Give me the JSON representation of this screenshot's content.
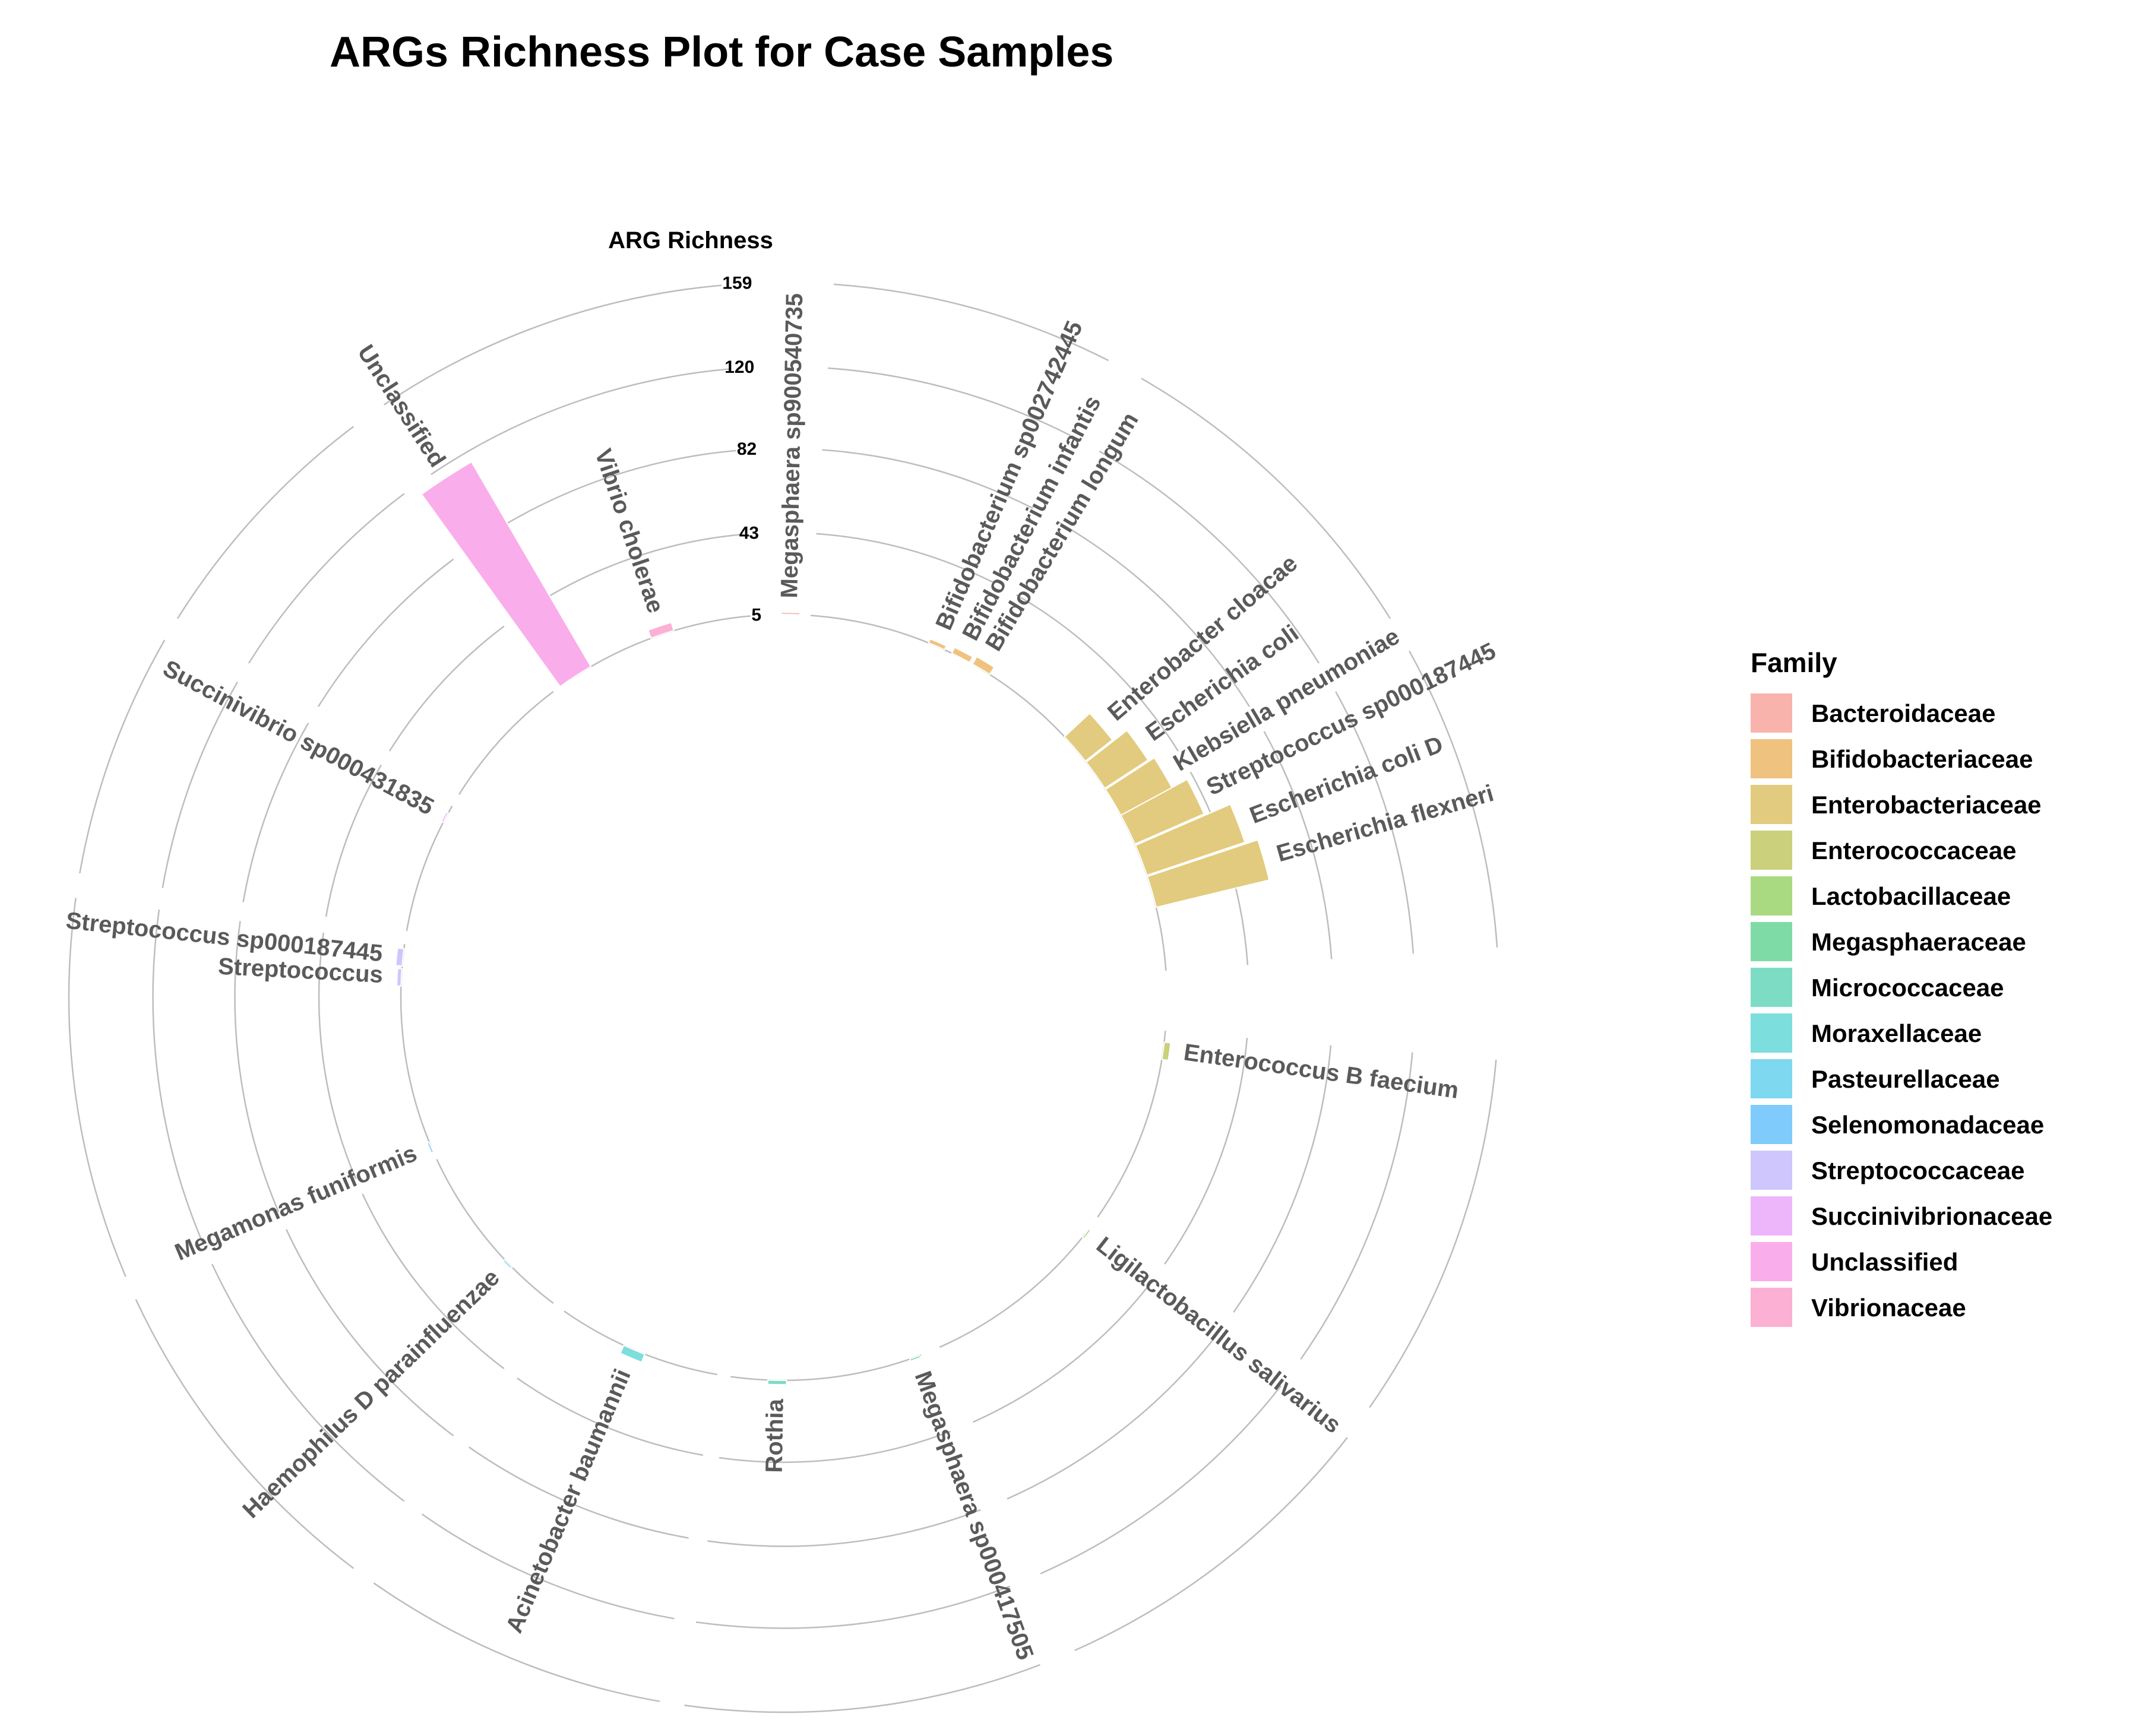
{
  "chart_data": {
    "type": "bar",
    "polar": true,
    "title": "ARGs Richness Plot for Case Samples",
    "ylabel": "ARG Richness",
    "yticks": [
      5,
      43,
      82,
      120,
      159
    ],
    "legend": {
      "title": "Family",
      "position": "right"
    },
    "grid": true,
    "families": [
      {
        "name": "Bacteroidaceae",
        "color": "#F8B3AC"
      },
      {
        "name": "Bifidobacteriaceae",
        "color": "#F0C27F"
      },
      {
        "name": "Enterobacteriaceae",
        "color": "#E2CB7E"
      },
      {
        "name": "Enterococcaceae",
        "color": "#CAD07C"
      },
      {
        "name": "Lactobacillaceae",
        "color": "#A9D981"
      },
      {
        "name": "Megasphaeraceae",
        "color": "#7FDBA5"
      },
      {
        "name": "Micrococcaceae",
        "color": "#7CDDC4"
      },
      {
        "name": "Moraxellaceae",
        "color": "#7CDEDD"
      },
      {
        "name": "Pasteurellaceae",
        "color": "#7DD8F0"
      },
      {
        "name": "Selenomonadaceae",
        "color": "#7FCBFB"
      },
      {
        "name": "Streptococcaceae",
        "color": "#CFC6FD"
      },
      {
        "name": "Succinivibrionaceae",
        "color": "#EDB6FB"
      },
      {
        "name": "Unclassified",
        "color": "#FAADEB"
      },
      {
        "name": "Vibrionaceae",
        "color": "#FCB0D3"
      }
    ],
    "bars": [
      {
        "label": "Megasphaera sp900540735",
        "family": "Bacteroidaceae",
        "value": 1
      },
      {
        "label": "Bifidobacterium sp002742445",
        "family": "Bifidobacteriaceae",
        "value": 2
      },
      {
        "label": "Bifidobacterium infantis",
        "family": "Bifidobacteriaceae",
        "value": 3
      },
      {
        "label": "Bifidobacterium longum",
        "family": "Bifidobacteriaceae",
        "value": 4
      },
      {
        "label": "Enterobacter cloacae",
        "family": "Enterobacteriaceae",
        "value": 16
      },
      {
        "label": "Escherichia coli",
        "family": "Enterobacteriaceae",
        "value": 24
      },
      {
        "label": "Klebsiella pneumoniae",
        "family": "Enterobacteriaceae",
        "value": 27
      },
      {
        "label": "Streptococcus sp000187445",
        "family": "Enterobacteriaceae",
        "value": 35
      },
      {
        "label": "Escherichia coli D",
        "family": "Enterobacteriaceae",
        "value": 48
      },
      {
        "label": "Escherichia flexneri",
        "family": "Enterobacteriaceae",
        "value": 54
      },
      {
        "label": "Enterococcus B faecium",
        "family": "Enterococcaceae",
        "value": 3
      },
      {
        "label": "Ligilactobacillus salivarius",
        "family": "Lactobacillaceae",
        "value": 1
      },
      {
        "label": "Megasphaera sp000417505",
        "family": "Megasphaeraceae",
        "value": 1
      },
      {
        "label": "Rothia",
        "family": "Micrococcaceae",
        "value": 2
      },
      {
        "label": "Acinetobacter baumannii",
        "family": "Moraxellaceae",
        "value": 4
      },
      {
        "label": "Haemophilus D parainfluenzae",
        "family": "Pasteurellaceae",
        "value": 1
      },
      {
        "label": "Megamonas funiformis",
        "family": "Selenomonadaceae",
        "value": 1
      },
      {
        "label": "Streptococcus",
        "family": "Streptococcaceae",
        "value": 2
      },
      {
        "label": "Streptococcus sp000187445",
        "family": "Streptococcaceae",
        "value": 3
      },
      {
        "label": "Succinivibrio sp000431835",
        "family": "Succinivibrionaceae",
        "value": 1
      },
      {
        "label": "Unclassified",
        "family": "Unclassified",
        "value": 110
      },
      {
        "label": "Vibrio cholerae",
        "family": "Vibrionaceae",
        "value": 4
      }
    ]
  }
}
